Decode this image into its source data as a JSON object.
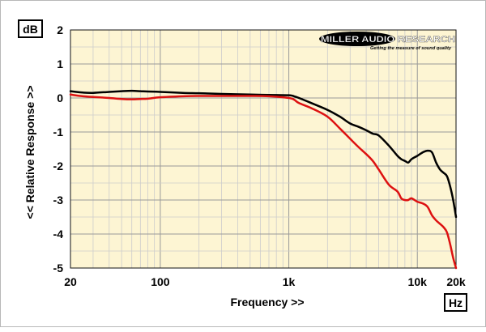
{
  "chart_data": {
    "type": "line",
    "ylabel": "<< Relative Response >>",
    "xlabel": "Frequency >>",
    "y_unit": "dB",
    "x_unit": "Hz",
    "x_scale": "log",
    "xlim": [
      20,
      20000
    ],
    "ylim": [
      -5,
      2
    ],
    "x_ticks": [
      {
        "value": 20,
        "label": "20"
      },
      {
        "value": 100,
        "label": "100"
      },
      {
        "value": 1000,
        "label": "1k"
      },
      {
        "value": 10000,
        "label": "10k"
      },
      {
        "value": 20000,
        "label": "20k"
      }
    ],
    "y_ticks": [
      {
        "value": 2,
        "label": "2"
      },
      {
        "value": 1,
        "label": "1"
      },
      {
        "value": 0,
        "label": "0"
      },
      {
        "value": -1,
        "label": "-1"
      },
      {
        "value": -2,
        "label": "-2"
      },
      {
        "value": -3,
        "label": "-3"
      },
      {
        "value": -4,
        "label": "-4"
      },
      {
        "value": -5,
        "label": "-5"
      }
    ],
    "grid": true,
    "background_color": "#fdf5d3",
    "series": [
      {
        "color": "#000000",
        "x": [
          20,
          25,
          30,
          40,
          50,
          60,
          70,
          80,
          100,
          150,
          200,
          300,
          500,
          700,
          1000,
          1100,
          1200,
          1500,
          2000,
          2500,
          3000,
          3500,
          4000,
          4500,
          5000,
          6000,
          7000,
          7500,
          8000,
          8500,
          9000,
          10000,
          11000,
          12000,
          13000,
          14000,
          15000,
          16000,
          17000,
          18000,
          19000,
          20000
        ],
        "y": [
          0.2,
          0.16,
          0.15,
          0.18,
          0.2,
          0.21,
          0.2,
          0.19,
          0.18,
          0.15,
          0.14,
          0.12,
          0.1,
          0.09,
          0.08,
          0.05,
          0.0,
          -0.15,
          -0.35,
          -0.55,
          -0.75,
          -0.85,
          -0.95,
          -1.05,
          -1.1,
          -1.4,
          -1.7,
          -1.8,
          -1.85,
          -1.9,
          -1.8,
          -1.7,
          -1.6,
          -1.55,
          -1.6,
          -1.9,
          -2.1,
          -2.2,
          -2.3,
          -2.6,
          -3.0,
          -3.5
        ]
      },
      {
        "color": "#dd1111",
        "x": [
          20,
          25,
          30,
          40,
          50,
          60,
          70,
          80,
          100,
          150,
          200,
          300,
          500,
          700,
          1000,
          1100,
          1200,
          1500,
          2000,
          2500,
          3000,
          3500,
          4000,
          4500,
          5000,
          6000,
          7000,
          7500,
          8000,
          8500,
          9000,
          10000,
          11000,
          12000,
          13000,
          14000,
          15000,
          16000,
          17000,
          18000,
          19000,
          20000
        ],
        "y": [
          0.1,
          0.05,
          0.03,
          0.0,
          -0.03,
          -0.04,
          -0.03,
          -0.02,
          0.02,
          0.05,
          0.06,
          0.06,
          0.06,
          0.05,
          0.0,
          -0.05,
          -0.15,
          -0.3,
          -0.55,
          -0.9,
          -1.2,
          -1.45,
          -1.65,
          -1.85,
          -2.1,
          -2.55,
          -2.75,
          -2.95,
          -3.0,
          -3.0,
          -2.95,
          -3.05,
          -3.1,
          -3.2,
          -3.45,
          -3.6,
          -3.7,
          -3.8,
          -3.95,
          -4.3,
          -4.7,
          -5.0
        ]
      }
    ]
  },
  "logo": {
    "brand": "MILLER AUDIO RESEARCH",
    "tagline": "Getting the measure of sound quality"
  }
}
